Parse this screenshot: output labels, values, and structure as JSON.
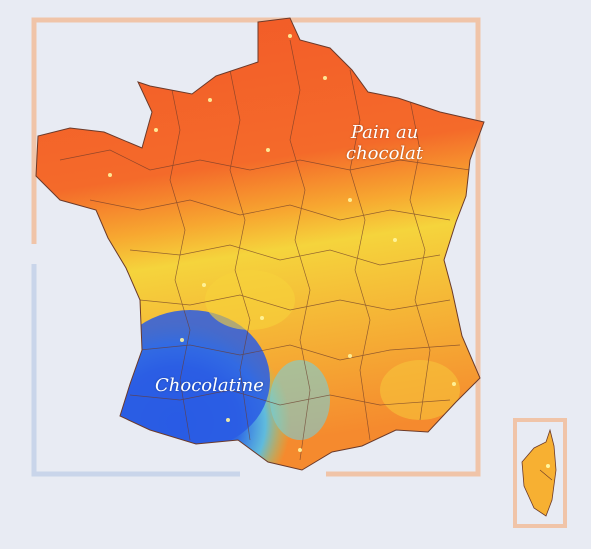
{
  "map": {
    "labels": {
      "north_line1": "Pain au",
      "north_line2": "chocolat",
      "south": "Chocolatine"
    },
    "regions": [
      {
        "name": "Pain au chocolat",
        "color": "#f4602a"
      },
      {
        "name": "Chocolatine",
        "color": "#2f62e0"
      }
    ],
    "colors": {
      "background": "#e8ebf3",
      "frame_north": "#f0c4a8",
      "frame_south": "#c9d5ea",
      "pain_au_chocolat": "#f4602a",
      "transition": "#f6d23a",
      "chocolatine": "#2f62e0",
      "border_lines": "#6b3a2a"
    }
  }
}
